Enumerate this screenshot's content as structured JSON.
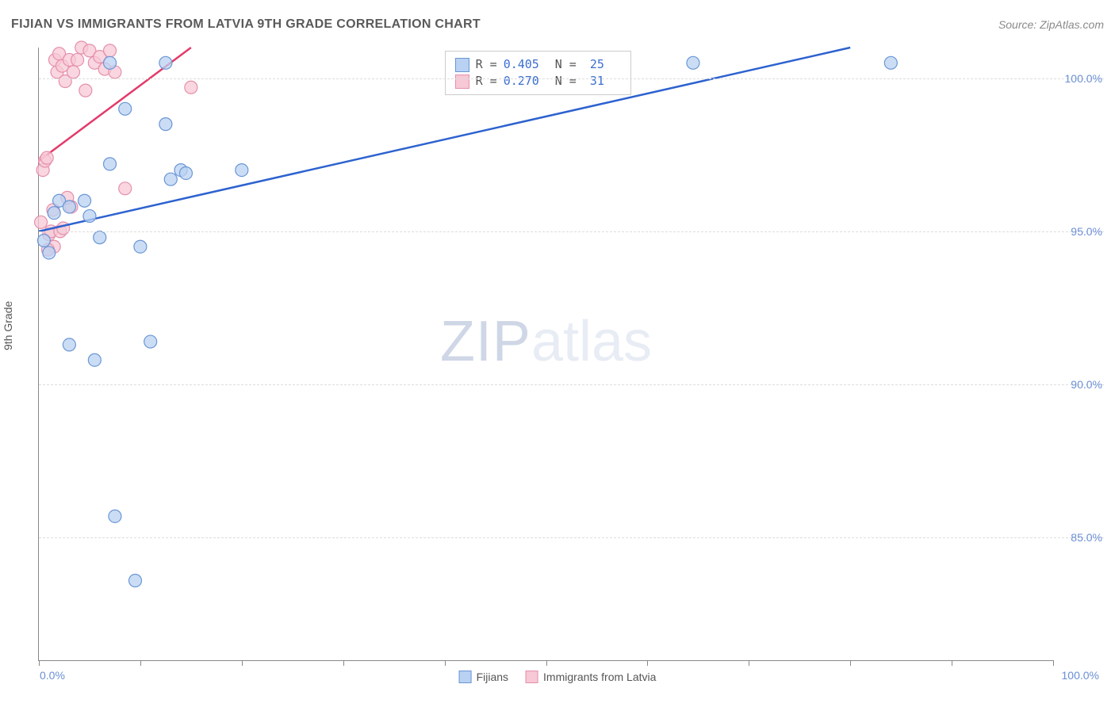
{
  "header": {
    "title": "FIJIAN VS IMMIGRANTS FROM LATVIA 9TH GRADE CORRELATION CHART",
    "source": "Source: ZipAtlas.com"
  },
  "axes": {
    "ylabel": "9th Grade",
    "xmin": 0,
    "xmax": 100,
    "ymin": 81,
    "ymax": 101,
    "yticks": [
      85.0,
      90.0,
      95.0,
      100.0
    ],
    "ytick_labels": [
      "85.0%",
      "90.0%",
      "95.0%",
      "100.0%"
    ],
    "xticks": [
      0,
      10,
      20,
      30,
      40,
      50,
      60,
      70,
      80,
      90,
      100
    ],
    "x0_label": "0.0%",
    "x1_label": "100.0%"
  },
  "series": {
    "fijians": {
      "label": "Fijians",
      "fill": "#b9d1f2",
      "stroke": "#6a96d6",
      "line_color": "#2d62cf",
      "r_value": "0.405",
      "n_value": "25",
      "points": [
        [
          0.5,
          94.7
        ],
        [
          1.0,
          94.3
        ],
        [
          1.5,
          95.6
        ],
        [
          2.0,
          96.0
        ],
        [
          3.0,
          95.8
        ],
        [
          4.5,
          96.0
        ],
        [
          5.0,
          95.5
        ],
        [
          6.0,
          94.8
        ],
        [
          7.0,
          97.2
        ],
        [
          8.5,
          99.0
        ],
        [
          10.0,
          94.5
        ],
        [
          11.0,
          91.4
        ],
        [
          12.5,
          98.5
        ],
        [
          12.5,
          100.5
        ],
        [
          13.0,
          96.7
        ],
        [
          14.0,
          97.0
        ],
        [
          14.5,
          96.9
        ],
        [
          20.0,
          97.0
        ],
        [
          3.0,
          91.3
        ],
        [
          5.5,
          90.8
        ],
        [
          7.5,
          85.7
        ],
        [
          9.5,
          83.6
        ],
        [
          64.5,
          100.5
        ],
        [
          84.0,
          100.5
        ],
        [
          7.0,
          100.5
        ]
      ],
      "trend": {
        "x1": 0,
        "y1": 95.0,
        "x2": 80,
        "y2": 101.0
      }
    },
    "latvia": {
      "label": "Immigrants from Latvia",
      "fill": "#f7c8d5",
      "stroke": "#e590ab",
      "line_color": "#e33a6b",
      "r_value": "0.270",
      "n_value": "31",
      "points": [
        [
          0.2,
          95.3
        ],
        [
          0.4,
          97.0
        ],
        [
          0.6,
          97.3
        ],
        [
          0.8,
          97.4
        ],
        [
          1.0,
          94.9
        ],
        [
          1.2,
          95.0
        ],
        [
          1.4,
          95.7
        ],
        [
          1.6,
          100.6
        ],
        [
          1.8,
          100.2
        ],
        [
          2.0,
          100.8
        ],
        [
          2.3,
          100.4
        ],
        [
          2.6,
          99.9
        ],
        [
          3.0,
          100.6
        ],
        [
          3.4,
          100.2
        ],
        [
          3.8,
          100.6
        ],
        [
          4.2,
          101.0
        ],
        [
          4.6,
          99.6
        ],
        [
          5.0,
          100.9
        ],
        [
          5.5,
          100.5
        ],
        [
          6.0,
          100.7
        ],
        [
          6.5,
          100.3
        ],
        [
          7.0,
          100.9
        ],
        [
          7.5,
          100.2
        ],
        [
          8.5,
          96.4
        ],
        [
          3.2,
          95.8
        ],
        [
          2.8,
          96.1
        ],
        [
          1.5,
          94.5
        ],
        [
          15.0,
          99.7
        ],
        [
          2.1,
          95.0
        ],
        [
          2.4,
          95.1
        ],
        [
          0.9,
          94.4
        ]
      ],
      "trend": {
        "x1": 0,
        "y1": 97.3,
        "x2": 15,
        "y2": 101.0
      }
    }
  },
  "style": {
    "marker_radius": 8,
    "marker_stroke_width": 1.2,
    "trend_stroke_width": 2.5,
    "background": "#ffffff",
    "grid_color": "#dddddd",
    "axis_color": "#888888",
    "tick_label_color": "#6b8fd6"
  },
  "watermark": {
    "part1": "ZIP",
    "part2": "atlas"
  },
  "top_legend": {
    "r_label": "R =",
    "n_label": "N ="
  }
}
